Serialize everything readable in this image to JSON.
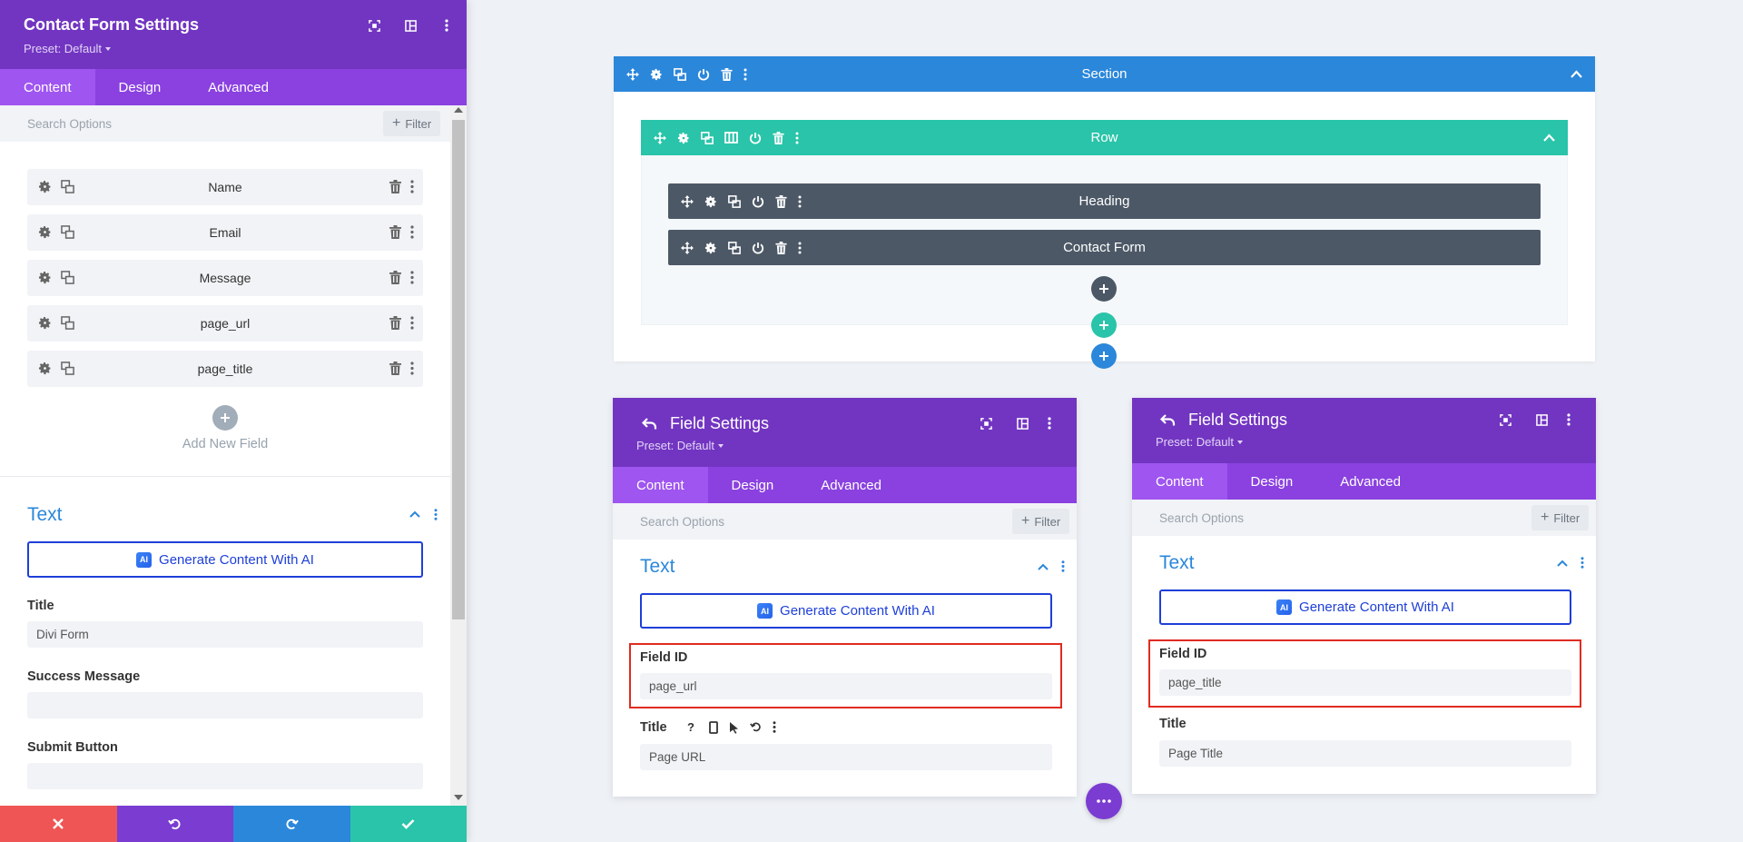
{
  "sidebar": {
    "title": "Contact Form Settings",
    "preset": "Preset: Default",
    "tabs": [
      "Content",
      "Design",
      "Advanced"
    ],
    "search_placeholder": "Search Options",
    "filter_label": "Filter",
    "fields": [
      "Name",
      "Email",
      "Message",
      "page_url",
      "page_title"
    ],
    "add_new_field": "Add New Field",
    "text_section": "Text",
    "generate_ai": "Generate Content With AI",
    "ai_badge": "AI",
    "title_label": "Title",
    "title_value": "Divi Form",
    "success_label": "Success Message",
    "success_value": "",
    "submit_label": "Submit Button",
    "submit_value": ""
  },
  "builder": {
    "section_label": "Section",
    "row_label": "Row",
    "modules": [
      "Heading",
      "Contact Form"
    ]
  },
  "field_settings_left": {
    "title": "Field Settings",
    "preset": "Preset: Default",
    "tabs": [
      "Content",
      "Design",
      "Advanced"
    ],
    "search_placeholder": "Search Options",
    "filter_label": "Filter",
    "text_section": "Text",
    "generate_ai": "Generate Content With AI",
    "field_id_label": "Field ID",
    "field_id_value": "page_url",
    "title_label": "Title",
    "title_value": "Page URL"
  },
  "field_settings_right": {
    "title": "Field Settings",
    "preset": "Preset: Default",
    "tabs": [
      "Content",
      "Design",
      "Advanced"
    ],
    "search_placeholder": "Search Options",
    "filter_label": "Filter",
    "text_section": "Text",
    "generate_ai": "Generate Content With AI",
    "field_id_label": "Field ID",
    "field_id_value": "page_title",
    "title_label": "Title",
    "title_value": "Page Title"
  },
  "colors": {
    "purple": "#7235c1",
    "tab_purple": "#8a41e0",
    "section_blue": "#2b87da",
    "row_teal": "#29c4a9",
    "module_dark": "#4c5866",
    "highlight_red": "#e02b20",
    "footer": [
      "#ef5555",
      "#7b3cd2",
      "#2b87da",
      "#29c4a9"
    ]
  }
}
